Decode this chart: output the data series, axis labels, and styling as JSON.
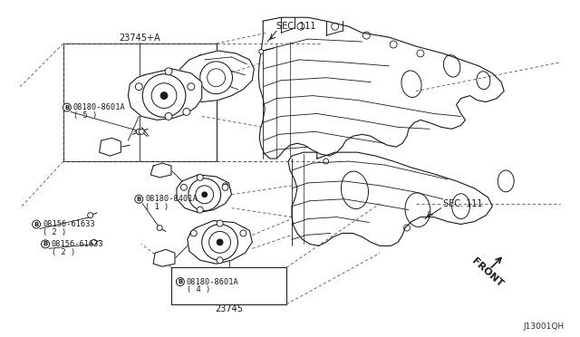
{
  "bg_color": "#ffffff",
  "fig_width": 6.4,
  "fig_height": 3.72,
  "dpi": 100,
  "watermark": "J13001QH",
  "label_23745A": "23745+A",
  "label_23745": "23745",
  "label_sec111_top": "SEC. 111",
  "label_sec111_bot": "SEC. 111",
  "label_front": "FRONT",
  "label_bolt1": "08180-8601A",
  "label_bolt1_qty": "( 5 )",
  "label_bolt2": "08180-8401A",
  "label_bolt2_qty": "( 1 )",
  "label_bolt3": "08156-61633",
  "label_bolt3_qty": "( 2 )",
  "label_bolt4": "08156-61633",
  "label_bolt4_qty": "( 2 )",
  "label_bolt5": "08180-8601A",
  "label_bolt5_qty": "( 4 )",
  "line_color": "#1a1a1a",
  "text_color": "#1a1a1a",
  "dashed_color": "#555555"
}
